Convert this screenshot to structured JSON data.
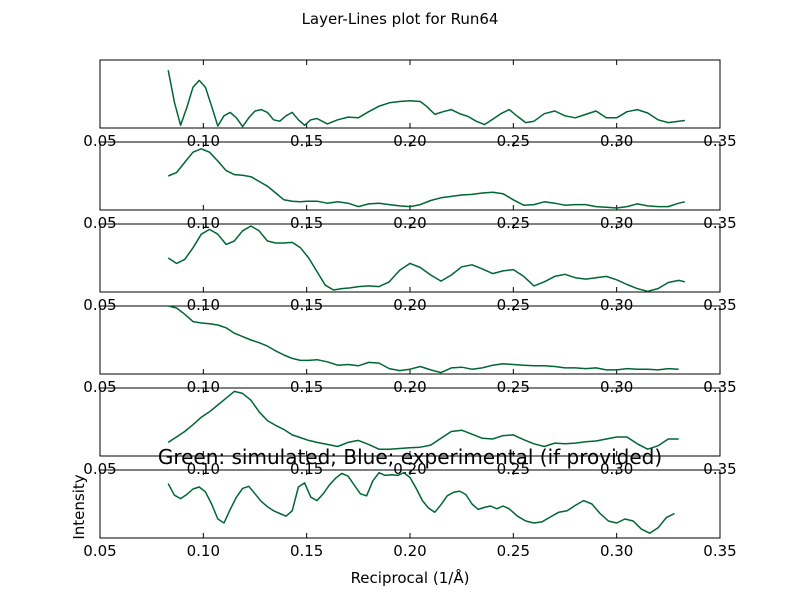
{
  "title": "Layer-Lines plot for Run64",
  "annotation": "Green: simulated; Blue; experimental (if provided)",
  "xlabel": "Reciprocal (1/Å)",
  "ylabel": "Intensity",
  "colors": {
    "simulated": "#006633",
    "experimental": "#0000ff"
  },
  "chart_data": {
    "type": "line",
    "xlim": [
      0.05,
      0.35
    ],
    "ylim": [
      0,
      10
    ],
    "xticks": [
      "0.05",
      "0.10",
      "0.15",
      "0.20",
      "0.25",
      "0.30",
      "0.35"
    ],
    "grid": false,
    "panels": [
      {
        "series": [
          {
            "x": [
              0.083,
              0.086,
              0.089,
              0.092,
              0.095,
              0.098,
              0.101,
              0.104,
              0.107,
              0.11,
              0.113,
              0.116,
              0.119,
              0.122,
              0.125,
              0.128,
              0.131,
              0.134,
              0.137,
              0.14,
              0.143,
              0.146,
              0.149,
              0.152,
              0.155,
              0.16,
              0.165,
              0.17,
              0.175,
              0.18,
              0.185,
              0.19,
              0.195,
              0.2,
              0.205,
              0.208,
              0.212,
              0.216,
              0.22,
              0.224,
              0.228,
              0.232,
              0.236,
              0.24,
              0.244,
              0.248,
              0.252,
              0.256,
              0.26,
              0.265,
              0.27,
              0.275,
              0.28,
              0.285,
              0.29,
              0.295,
              0.3,
              0.305,
              0.31,
              0.315,
              0.32,
              0.325,
              0.33,
              0.333
            ],
            "y": [
              8.5,
              3.8,
              0.4,
              3.0,
              6.0,
              7.0,
              6.0,
              3.2,
              0.3,
              1.8,
              2.3,
              1.5,
              0.2,
              1.5,
              2.5,
              2.7,
              2.3,
              1.2,
              1.0,
              1.8,
              2.3,
              1.2,
              0.4,
              1.2,
              1.4,
              0.6,
              1.2,
              1.6,
              1.5,
              2.4,
              3.2,
              3.7,
              3.9,
              4.0,
              3.9,
              3.2,
              2.0,
              2.4,
              2.7,
              2.1,
              1.7,
              1.0,
              0.5,
              1.3,
              2.1,
              2.7,
              1.7,
              0.8,
              1.0,
              2.1,
              2.5,
              1.8,
              1.5,
              2.0,
              2.5,
              1.5,
              1.5,
              2.4,
              2.7,
              2.2,
              1.2,
              0.8,
              1.0,
              1.1
            ]
          }
        ]
      },
      {
        "series": [
          {
            "x": [
              0.083,
              0.087,
              0.091,
              0.095,
              0.099,
              0.103,
              0.107,
              0.111,
              0.115,
              0.119,
              0.123,
              0.127,
              0.131,
              0.135,
              0.139,
              0.143,
              0.147,
              0.15,
              0.155,
              0.16,
              0.165,
              0.17,
              0.175,
              0.18,
              0.185,
              0.19,
              0.195,
              0.2,
              0.205,
              0.21,
              0.215,
              0.22,
              0.225,
              0.23,
              0.235,
              0.24,
              0.245,
              0.25,
              0.255,
              0.26,
              0.265,
              0.27,
              0.275,
              0.28,
              0.285,
              0.29,
              0.295,
              0.3,
              0.305,
              0.31,
              0.315,
              0.32,
              0.325,
              0.33,
              0.333
            ],
            "y": [
              5.0,
              5.5,
              7.0,
              8.5,
              9.0,
              8.5,
              7.2,
              5.8,
              5.2,
              5.1,
              4.9,
              4.2,
              3.5,
              2.5,
              1.5,
              1.3,
              1.2,
              1.3,
              1.3,
              1.0,
              1.2,
              1.0,
              0.5,
              0.9,
              1.0,
              0.8,
              0.6,
              0.5,
              0.8,
              1.4,
              1.8,
              2.0,
              2.2,
              2.3,
              2.5,
              2.6,
              2.4,
              1.5,
              0.7,
              0.8,
              1.2,
              1.0,
              0.7,
              0.8,
              0.8,
              0.5,
              0.4,
              0.3,
              0.5,
              0.9,
              0.6,
              0.5,
              0.5,
              1.0,
              1.2
            ]
          }
        ]
      },
      {
        "series": [
          {
            "x": [
              0.083,
              0.087,
              0.091,
              0.095,
              0.099,
              0.103,
              0.107,
              0.111,
              0.115,
              0.119,
              0.123,
              0.127,
              0.131,
              0.135,
              0.139,
              0.143,
              0.147,
              0.151,
              0.155,
              0.159,
              0.163,
              0.167,
              0.171,
              0.175,
              0.18,
              0.185,
              0.19,
              0.195,
              0.2,
              0.205,
              0.21,
              0.215,
              0.22,
              0.225,
              0.23,
              0.235,
              0.24,
              0.245,
              0.25,
              0.255,
              0.26,
              0.265,
              0.27,
              0.275,
              0.28,
              0.285,
              0.29,
              0.295,
              0.3,
              0.305,
              0.31,
              0.315,
              0.32,
              0.325,
              0.33,
              0.333
            ],
            "y": [
              5.0,
              4.2,
              4.8,
              6.5,
              8.5,
              9.2,
              8.5,
              7.0,
              7.5,
              9.0,
              9.7,
              9.0,
              7.5,
              7.2,
              7.2,
              7.3,
              6.5,
              5.0,
              3.0,
              1.0,
              0.3,
              0.5,
              0.6,
              0.8,
              0.9,
              0.8,
              1.5,
              3.2,
              4.2,
              3.6,
              2.5,
              1.6,
              2.5,
              3.7,
              4.0,
              3.4,
              2.7,
              3.1,
              3.3,
              2.3,
              0.9,
              1.5,
              2.3,
              2.6,
              2.1,
              1.9,
              2.1,
              2.3,
              1.8,
              1.1,
              0.5,
              0.1,
              0.5,
              1.4,
              1.7,
              1.5
            ]
          }
        ]
      },
      {
        "series": [
          {
            "x": [
              0.083,
              0.087,
              0.091,
              0.095,
              0.099,
              0.103,
              0.107,
              0.111,
              0.115,
              0.119,
              0.123,
              0.127,
              0.131,
              0.135,
              0.139,
              0.143,
              0.147,
              0.151,
              0.155,
              0.16,
              0.165,
              0.17,
              0.175,
              0.18,
              0.185,
              0.19,
              0.195,
              0.2,
              0.205,
              0.21,
              0.215,
              0.22,
              0.225,
              0.23,
              0.235,
              0.24,
              0.245,
              0.25,
              0.255,
              0.26,
              0.265,
              0.27,
              0.275,
              0.28,
              0.285,
              0.29,
              0.295,
              0.3,
              0.305,
              0.31,
              0.315,
              0.32,
              0.325,
              0.33
            ],
            "y": [
              10.0,
              9.7,
              8.8,
              7.7,
              7.5,
              7.4,
              7.2,
              6.8,
              6.0,
              5.5,
              5.0,
              4.6,
              4.1,
              3.4,
              2.8,
              2.3,
              2.0,
              2.0,
              2.1,
              1.8,
              1.3,
              1.4,
              1.2,
              1.7,
              1.6,
              0.8,
              0.5,
              0.7,
              1.1,
              0.6,
              0.2,
              0.9,
              1.0,
              0.7,
              0.9,
              1.3,
              1.5,
              1.4,
              1.3,
              1.2,
              1.2,
              1.1,
              0.9,
              0.9,
              0.8,
              0.9,
              0.6,
              0.6,
              0.8,
              0.7,
              0.7,
              0.6,
              0.8,
              0.7
            ]
          }
        ]
      },
      {
        "series": [
          {
            "x": [
              0.083,
              0.087,
              0.091,
              0.095,
              0.099,
              0.103,
              0.107,
              0.111,
              0.115,
              0.119,
              0.123,
              0.127,
              0.131,
              0.135,
              0.139,
              0.143,
              0.147,
              0.151,
              0.155,
              0.16,
              0.165,
              0.17,
              0.175,
              0.18,
              0.185,
              0.19,
              0.195,
              0.2,
              0.205,
              0.21,
              0.215,
              0.22,
              0.225,
              0.23,
              0.235,
              0.24,
              0.245,
              0.25,
              0.255,
              0.26,
              0.265,
              0.27,
              0.275,
              0.28,
              0.285,
              0.29,
              0.295,
              0.3,
              0.305,
              0.31,
              0.315,
              0.32,
              0.325,
              0.33
            ],
            "y": [
              2.0,
              2.8,
              3.6,
              4.6,
              5.7,
              6.5,
              7.5,
              8.5,
              9.5,
              9.2,
              8.2,
              6.5,
              5.2,
              4.5,
              3.9,
              3.1,
              2.7,
              2.3,
              2.0,
              1.7,
              1.4,
              2.0,
              2.3,
              1.7,
              1.0,
              1.0,
              1.1,
              1.2,
              1.3,
              1.6,
              2.6,
              3.6,
              3.8,
              3.2,
              2.6,
              2.5,
              3.0,
              3.1,
              2.4,
              1.8,
              1.4,
              1.9,
              1.8,
              1.9,
              2.1,
              2.2,
              2.5,
              2.8,
              2.8,
              1.8,
              1.0,
              1.5,
              2.5,
              2.5
            ]
          }
        ]
      },
      {
        "series": [
          {
            "x": [
              0.083,
              0.086,
              0.089,
              0.092,
              0.095,
              0.098,
              0.101,
              0.104,
              0.107,
              0.11,
              0.113,
              0.116,
              0.119,
              0.122,
              0.125,
              0.128,
              0.131,
              0.134,
              0.137,
              0.14,
              0.143,
              0.146,
              0.149,
              0.152,
              0.155,
              0.158,
              0.161,
              0.164,
              0.167,
              0.17,
              0.173,
              0.176,
              0.179,
              0.182,
              0.185,
              0.188,
              0.191,
              0.194,
              0.197,
              0.2,
              0.203,
              0.206,
              0.209,
              0.212,
              0.215,
              0.218,
              0.221,
              0.224,
              0.227,
              0.23,
              0.233,
              0.236,
              0.239,
              0.242,
              0.245,
              0.248,
              0.252,
              0.256,
              0.26,
              0.264,
              0.268,
              0.272,
              0.276,
              0.28,
              0.284,
              0.288,
              0.292,
              0.296,
              0.3,
              0.304,
              0.308,
              0.312,
              0.316,
              0.32,
              0.324,
              0.328
            ],
            "y": [
              8.0,
              6.3,
              5.8,
              6.4,
              7.2,
              7.5,
              6.8,
              5.0,
              2.8,
              2.2,
              4.2,
              6.0,
              7.3,
              7.6,
              6.5,
              5.4,
              4.6,
              4.0,
              3.6,
              3.2,
              4.0,
              7.5,
              8.1,
              6.0,
              5.5,
              6.5,
              7.8,
              8.8,
              9.5,
              9.1,
              7.8,
              6.5,
              6.2,
              8.4,
              9.6,
              9.2,
              9.3,
              9.2,
              9.6,
              8.9,
              7.3,
              5.5,
              4.4,
              3.8,
              4.9,
              6.2,
              6.7,
              6.9,
              6.4,
              5.0,
              4.2,
              4.5,
              4.7,
              4.3,
              4.7,
              4.3,
              3.2,
              2.5,
              2.2,
              2.4,
              3.1,
              3.8,
              4.0,
              4.8,
              5.5,
              5.0,
              3.6,
              2.5,
              2.2,
              2.8,
              2.5,
              1.3,
              0.7,
              1.5,
              3.0,
              3.6
            ]
          }
        ]
      }
    ]
  }
}
